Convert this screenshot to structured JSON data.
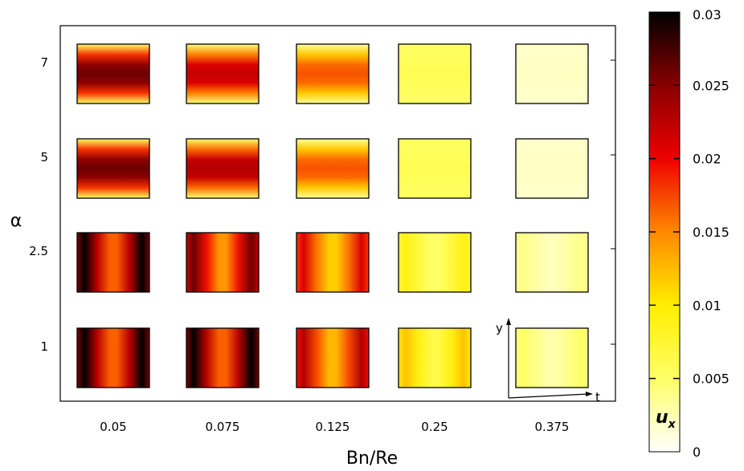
{
  "chart_data": {
    "type": "heatmap",
    "xlabel": "Bn/Re",
    "ylabel": "α",
    "x_ticks": [
      "0.05",
      "0.075",
      "0.125",
      "0.25",
      "0.375"
    ],
    "y_ticks": [
      "7",
      "5",
      "2.5",
      "1"
    ],
    "colorbar": {
      "label_main": "u",
      "label_sub": "x",
      "min": 0,
      "max": 0.03,
      "tick_labels": [
        "0.03",
        "0.025",
        "0.02",
        "0.015",
        "0.01",
        "0.005",
        "0"
      ],
      "tick_values": [
        0.03,
        0.025,
        0.02,
        0.015,
        0.01,
        0.005,
        0
      ],
      "colors": [
        "#ffffff",
        "#ffff66",
        "#ffee00",
        "#ff8800",
        "#ee0000",
        "#880000",
        "#000000"
      ]
    },
    "inset_axes": {
      "x": "t",
      "y": "y"
    },
    "cells": [
      [
        {
          "pattern": "band",
          "max": 0.026
        },
        {
          "pattern": "band",
          "max": 0.022
        },
        {
          "pattern": "band",
          "max": 0.017
        },
        {
          "pattern": "uniform",
          "max": 0.006
        },
        {
          "pattern": "uniform",
          "max": 0.002
        }
      ],
      [
        {
          "pattern": "band",
          "max": 0.026
        },
        {
          "pattern": "band",
          "max": 0.023
        },
        {
          "pattern": "band",
          "max": 0.017
        },
        {
          "pattern": "uniform",
          "max": 0.006
        },
        {
          "pattern": "uniform",
          "max": 0.002
        }
      ],
      [
        {
          "pattern": "edges",
          "max": 0.03
        },
        {
          "pattern": "edges",
          "max": 0.026
        },
        {
          "pattern": "edges",
          "max": 0.021
        },
        {
          "pattern": "edges",
          "max": 0.009
        },
        {
          "pattern": "edges",
          "max": 0.004
        }
      ],
      [
        {
          "pattern": "edges",
          "max": 0.03
        },
        {
          "pattern": "edges",
          "max": 0.03
        },
        {
          "pattern": "edges",
          "max": 0.023
        },
        {
          "pattern": "edges",
          "max": 0.012
        },
        {
          "pattern": "edges",
          "max": 0.005
        }
      ]
    ]
  }
}
